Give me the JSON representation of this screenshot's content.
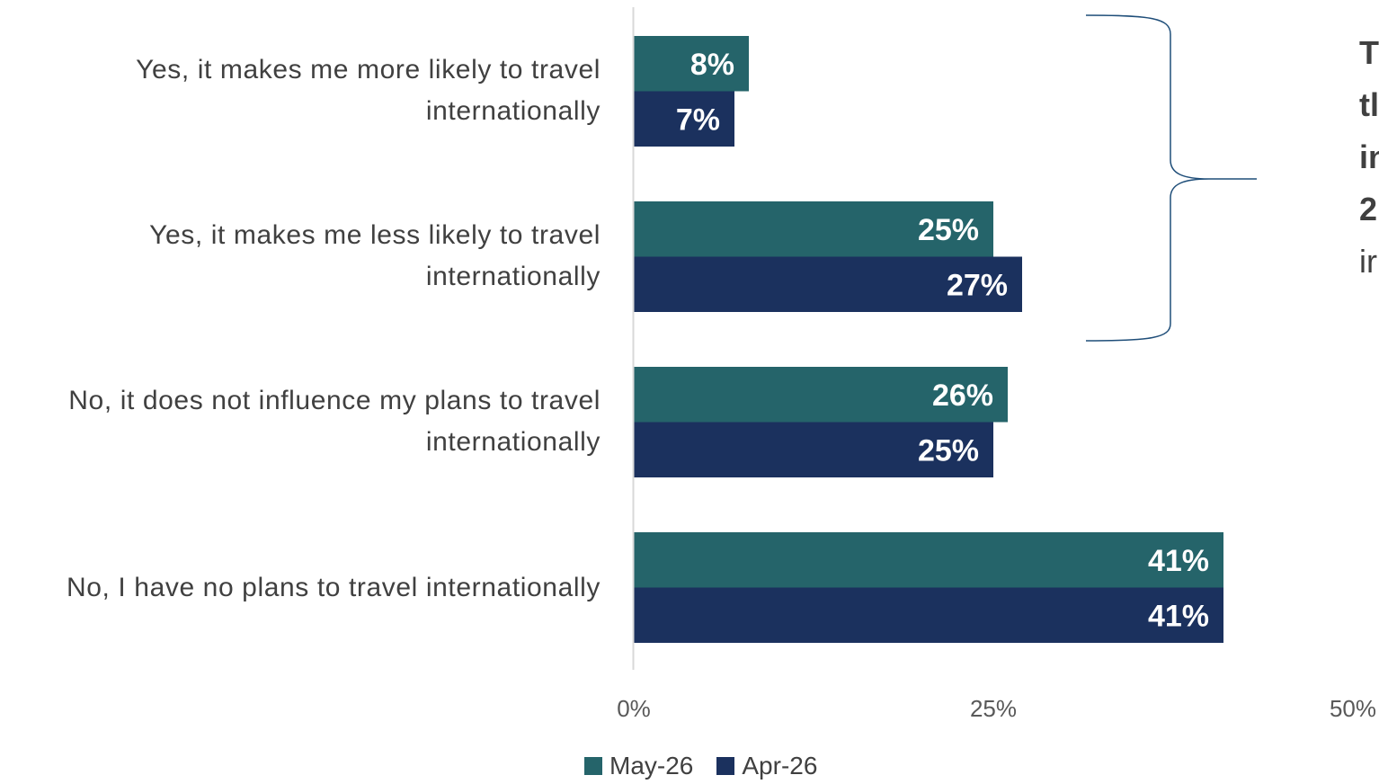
{
  "colors": {
    "may": "#25646A",
    "apr": "#1B315E",
    "axis": "#D9D9D9",
    "brace": "#1F4E79"
  },
  "legend": {
    "may_label": "May-26",
    "apr_label": "Apr-26"
  },
  "callout": {
    "line1": "T",
    "line2": "tl",
    "line3": "in",
    "line4": "2",
    "line5": "ir"
  },
  "chart_data": {
    "type": "bar",
    "orientation": "horizontal",
    "categories": [
      [
        "Yes, it makes me more likely to travel",
        "internationally"
      ],
      [
        "Yes, it makes me less likely to travel",
        "internationally"
      ],
      [
        "No, it does not influence my plans to travel",
        "internationally"
      ],
      [
        "No, I have no plans to travel internationally"
      ]
    ],
    "series": [
      {
        "name": "May-26",
        "values": [
          8,
          25,
          26,
          41
        ],
        "labels": [
          "8%",
          "25%",
          "26%",
          "41%"
        ]
      },
      {
        "name": "Apr-26",
        "values": [
          7,
          27,
          25,
          41
        ],
        "labels": [
          "7%",
          "27%",
          "25%",
          "41%"
        ]
      }
    ],
    "xlim": [
      0,
      50
    ],
    "xticks": [
      0,
      25,
      50
    ],
    "xtick_labels": [
      "0%",
      "25%",
      "50%"
    ],
    "grid": false,
    "legend_position": "bottom"
  }
}
